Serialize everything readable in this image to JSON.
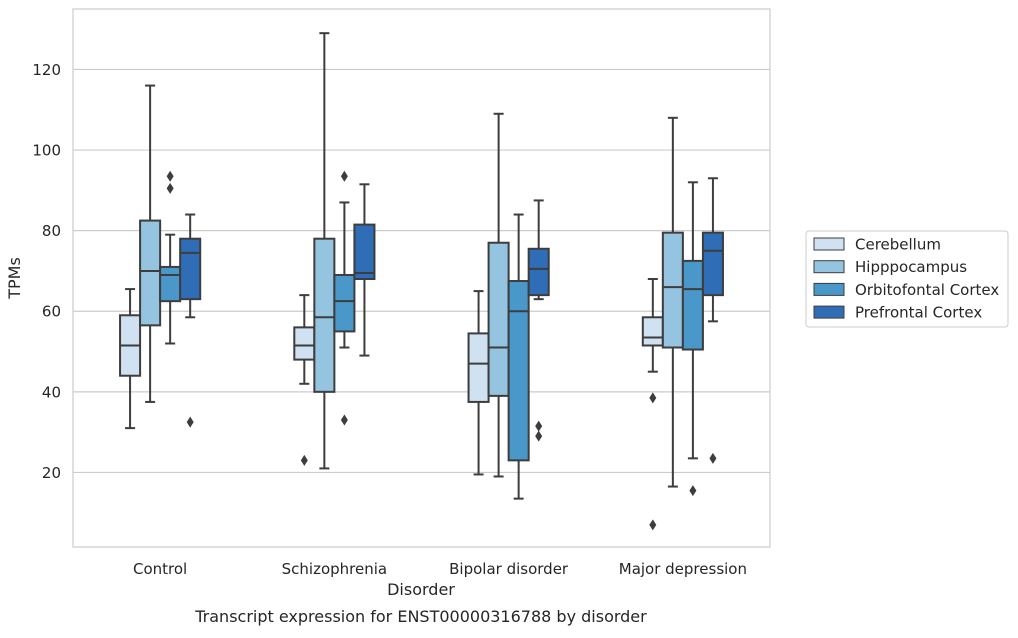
{
  "chart_data": {
    "type": "box",
    "caption": "Transcript expression for ENST00000316788 by disorder",
    "xlabel": "Disorder",
    "ylabel": "TPMs",
    "ylim": [
      1.5,
      135
    ],
    "yticks": [
      20,
      40,
      60,
      80,
      100,
      120
    ],
    "grid": "horizontal",
    "legend_position": "right",
    "categories": [
      "Control",
      "Schizophrenia",
      "Bipolar disorder",
      "Major depression"
    ],
    "series": [
      {
        "name": "Cerebellum",
        "color": "#d0e1f2",
        "boxes": [
          {
            "whisker_low": 31,
            "q1": 44,
            "median": 51.5,
            "q3": 59,
            "whisker_high": 65.5,
            "outliers": []
          },
          {
            "whisker_low": 42,
            "q1": 48,
            "median": 51.5,
            "q3": 56,
            "whisker_high": 64,
            "outliers": [
              23
            ]
          },
          {
            "whisker_low": 19.5,
            "q1": 37.5,
            "median": 47,
            "q3": 54.5,
            "whisker_high": 65,
            "outliers": []
          },
          {
            "whisker_low": 45,
            "q1": 51.5,
            "median": 53.5,
            "q3": 58.5,
            "whisker_high": 68,
            "outliers": [
              38.5,
              7
            ]
          }
        ]
      },
      {
        "name": "Hipppocampus",
        "color": "#94c4df",
        "boxes": [
          {
            "whisker_low": 37.5,
            "q1": 56.5,
            "median": 70,
            "q3": 82.5,
            "whisker_high": 116,
            "outliers": []
          },
          {
            "whisker_low": 21,
            "q1": 40,
            "median": 58.5,
            "q3": 78,
            "whisker_high": 129,
            "outliers": []
          },
          {
            "whisker_low": 19,
            "q1": 39,
            "median": 51,
            "q3": 77,
            "whisker_high": 109,
            "outliers": []
          },
          {
            "whisker_low": 16.5,
            "q1": 51,
            "median": 66,
            "q3": 79.5,
            "whisker_high": 108,
            "outliers": []
          }
        ]
      },
      {
        "name": "Orbitofontal Cortex",
        "color": "#4a98c9",
        "boxes": [
          {
            "whisker_low": 52,
            "q1": 62.5,
            "median": 69,
            "q3": 71,
            "whisker_high": 79,
            "outliers": [
              93.5,
              90.5
            ]
          },
          {
            "whisker_low": 51,
            "q1": 55,
            "median": 62.5,
            "q3": 69,
            "whisker_high": 87,
            "outliers": [
              93.5,
              33
            ]
          },
          {
            "whisker_low": 13.5,
            "q1": 23,
            "median": 60,
            "q3": 67.5,
            "whisker_high": 84,
            "outliers": []
          },
          {
            "whisker_low": 23.5,
            "q1": 50.5,
            "median": 65.5,
            "q3": 72.5,
            "whisker_high": 92,
            "outliers": [
              15.5
            ]
          }
        ]
      },
      {
        "name": "Prefrontal Cortex",
        "color": "#2f6eb6",
        "boxes": [
          {
            "whisker_low": 58.5,
            "q1": 63,
            "median": 74.5,
            "q3": 78,
            "whisker_high": 84,
            "outliers": [
              32.5
            ]
          },
          {
            "whisker_low": 49,
            "q1": 68,
            "median": 69.5,
            "q3": 81.5,
            "whisker_high": 91.5,
            "outliers": []
          },
          {
            "whisker_low": 63,
            "q1": 64,
            "median": 70.5,
            "q3": 75.5,
            "whisker_high": 87.5,
            "outliers": [
              31.5,
              29
            ]
          },
          {
            "whisker_low": 57.5,
            "q1": 64,
            "median": 75,
            "q3": 79.5,
            "whisker_high": 93,
            "outliers": [
              23.5
            ]
          }
        ]
      }
    ]
  }
}
